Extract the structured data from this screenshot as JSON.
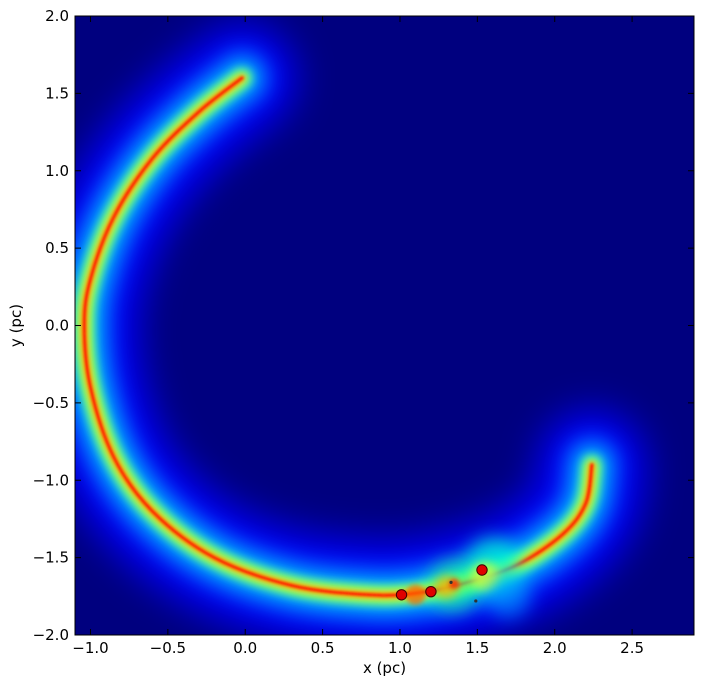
{
  "chart_data": {
    "type": "heatmap",
    "xlabel": "x (pc)",
    "ylabel": "y (pc)",
    "xlim": [
      -1.1,
      2.9
    ],
    "ylim": [
      -2.0,
      2.0
    ],
    "x_ticks": [
      -1.0,
      -0.5,
      0.0,
      0.5,
      1.0,
      1.5,
      2.0,
      2.5
    ],
    "x_tick_labels": [
      "−1.0",
      "−0.5",
      "0.0",
      "0.5",
      "1.0",
      "1.5",
      "2.0",
      "2.5"
    ],
    "y_ticks": [
      2.0,
      1.5,
      1.0,
      0.5,
      0.0,
      -0.5,
      -1.0,
      -1.5,
      -2.0
    ],
    "y_tick_labels": [
      "2.0",
      "1.5",
      "1.0",
      "0.5",
      "0.0",
      "−0.5",
      "−1.0",
      "−1.5",
      "−2.0"
    ],
    "colormap": "jet",
    "background_color": "#00007f",
    "grid": false,
    "filament_ridge": [
      {
        "x": -0.02,
        "y": 1.6
      },
      {
        "x": -0.3,
        "y": 1.38
      },
      {
        "x": -0.6,
        "y": 1.08
      },
      {
        "x": -0.85,
        "y": 0.7
      },
      {
        "x": -1.0,
        "y": 0.3
      },
      {
        "x": -1.04,
        "y": 0.0
      },
      {
        "x": -1.0,
        "y": -0.4
      },
      {
        "x": -0.85,
        "y": -0.85
      },
      {
        "x": -0.6,
        "y": -1.2
      },
      {
        "x": -0.2,
        "y": -1.5
      },
      {
        "x": 0.3,
        "y": -1.68
      },
      {
        "x": 0.8,
        "y": -1.74
      },
      {
        "x": 1.1,
        "y": -1.73
      },
      {
        "x": 1.4,
        "y": -1.67
      },
      {
        "x": 1.75,
        "y": -1.55
      },
      {
        "x": 2.05,
        "y": -1.35
      },
      {
        "x": 2.2,
        "y": -1.15
      },
      {
        "x": 2.24,
        "y": -0.9
      }
    ],
    "sink_particles": [
      {
        "x": 1.01,
        "y": -1.74
      },
      {
        "x": 1.2,
        "y": -1.72
      },
      {
        "x": 1.53,
        "y": -1.58
      }
    ],
    "small_points": [
      {
        "x": 1.49,
        "y": -1.78
      },
      {
        "x": 1.33,
        "y": -1.66
      }
    ]
  }
}
